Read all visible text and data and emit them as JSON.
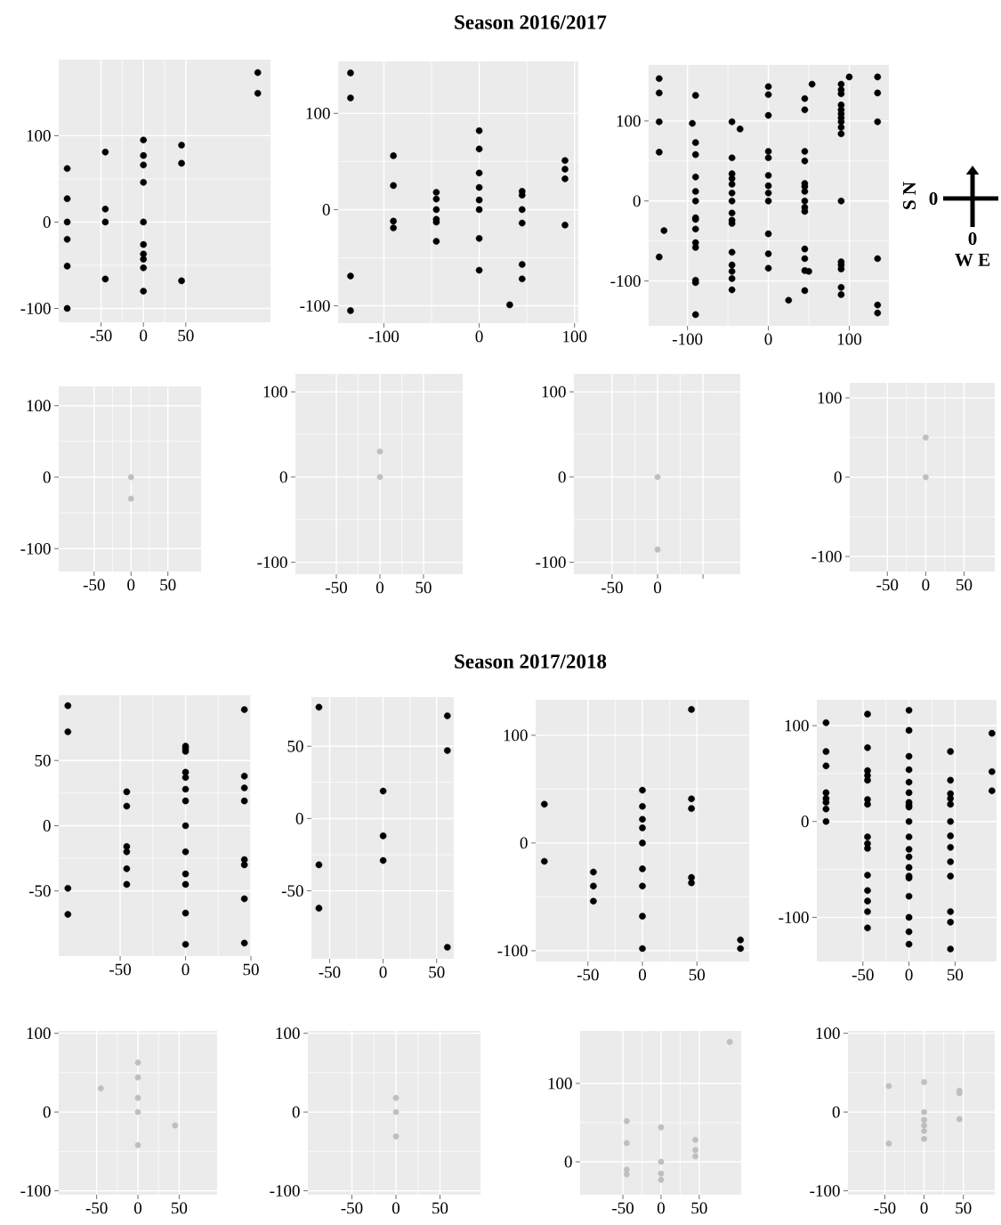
{
  "chart_data": [
    {
      "type": "scatter",
      "color": "#000000",
      "grid": true,
      "xlim": [
        -100,
        150
      ],
      "ylim": [
        -116,
        188
      ],
      "xticks": [
        -50,
        0,
        50
      ],
      "yticks": [
        -100,
        0,
        100
      ],
      "x": [
        -90,
        -90,
        -90,
        -90,
        -90,
        -90,
        -45,
        -45,
        -45,
        -45,
        0,
        0,
        0,
        0,
        0,
        0,
        0,
        0,
        0,
        0,
        45,
        45,
        45,
        135,
        135
      ],
      "values": [
        62,
        27,
        0,
        -20,
        -51,
        -100,
        81,
        15,
        0,
        -66,
        95,
        77,
        66,
        46,
        0,
        -26,
        -37,
        -43,
        -53,
        -80,
        89,
        68,
        -68,
        173,
        149
      ]
    },
    {
      "type": "scatter",
      "title": "Season 2016/2017",
      "color": "#000000",
      "grid": true,
      "xlim": [
        -148,
        104
      ],
      "ylim": [
        -118,
        154
      ],
      "xticks": [
        -100,
        0,
        100
      ],
      "yticks": [
        -100,
        0,
        100
      ],
      "x": [
        -135,
        -135,
        -135,
        -135,
        -90,
        -90,
        -90,
        -90,
        -45,
        -45,
        -45,
        -45,
        -45,
        -45,
        0,
        0,
        0,
        0,
        0,
        0,
        0,
        0,
        45,
        45,
        45,
        45,
        45,
        45,
        32,
        90,
        90,
        90,
        90
      ],
      "values": [
        142,
        116,
        -69,
        -105,
        56,
        25,
        -12,
        -19,
        18,
        11,
        0,
        -10,
        -13,
        -33,
        82,
        63,
        38,
        23,
        10,
        0,
        -30,
        -63,
        19,
        15,
        0,
        -14,
        -57,
        -72,
        -99,
        51,
        42,
        32,
        -16
      ]
    },
    {
      "type": "scatter",
      "color": "#000000",
      "grid": true,
      "xlim": [
        -148,
        149
      ],
      "ylim": [
        -156,
        170
      ],
      "xticks": [
        -100,
        0,
        100
      ],
      "yticks": [
        -100,
        0,
        100
      ],
      "annotations": [
        "S N",
        "0",
        "0",
        "W E"
      ],
      "x": [
        -135,
        -135,
        -135,
        -135,
        -135,
        -129,
        -94,
        -90,
        -90,
        -90,
        -90,
        -90,
        -90,
        -90,
        -90,
        -90,
        -90,
        -90,
        -90,
        -90,
        -90,
        -45,
        -45,
        -45,
        -45,
        -45,
        -45,
        -45,
        -45,
        -45,
        -45,
        -45,
        -45,
        -45,
        -45,
        -45,
        -35,
        0,
        0,
        0,
        0,
        0,
        0,
        0,
        0,
        0,
        0,
        0,
        0,
        25,
        45,
        45,
        45,
        45,
        45,
        45,
        45,
        45,
        45,
        45,
        45,
        45,
        45,
        45,
        50,
        54,
        90,
        90,
        90,
        90,
        90,
        90,
        90,
        90,
        90,
        90,
        90,
        90,
        90,
        90,
        90,
        90,
        100,
        135,
        135,
        135,
        135,
        135,
        135
      ],
      "values": [
        153,
        135,
        99,
        61,
        -70,
        -37,
        97,
        132,
        73,
        58,
        30,
        12,
        0,
        -21,
        -23,
        -35,
        -52,
        -58,
        -99,
        -102,
        -142,
        99,
        54,
        34,
        28,
        21,
        10,
        0,
        -15,
        -24,
        -28,
        -64,
        -80,
        -88,
        -97,
        -111,
        90,
        143,
        133,
        107,
        62,
        54,
        32,
        19,
        10,
        0,
        -41,
        -66,
        -84,
        -124,
        128,
        114,
        62,
        50,
        22,
        18,
        12,
        0,
        -8,
        -13,
        -60,
        -72,
        -87,
        -112,
        -88,
        146,
        146,
        139,
        134,
        120,
        114,
        109,
        104,
        99,
        92,
        84,
        0,
        -76,
        -80,
        -85,
        -108,
        -117,
        155,
        155,
        135,
        99,
        -72,
        -130,
        -140
      ]
    },
    {
      "type": "scatter",
      "color": "#bebebe",
      "grid": true,
      "xlim": [
        -98,
        95
      ],
      "ylim": [
        -132,
        127
      ],
      "xticks": [
        -50,
        0,
        50
      ],
      "yticks": [
        -100,
        0,
        100
      ],
      "x": [
        0,
        0
      ],
      "values": [
        0,
        -30
      ]
    },
    {
      "type": "scatter",
      "color": "#bebebe",
      "grid": true,
      "xlim": [
        -97,
        95
      ],
      "ylim": [
        -114,
        121
      ],
      "xticks": [
        -50,
        0,
        50
      ],
      "yticks": [
        -100,
        0,
        100
      ],
      "x": [
        0,
        0
      ],
      "values": [
        30,
        0
      ]
    },
    {
      "type": "scatter",
      "color": "#bebebe",
      "grid": true,
      "xlim": [
        -92,
        91
      ],
      "ylim": [
        -114,
        121
      ],
      "xticks": [
        -50,
        0,
        {
          "value": 50,
          "label": null
        }
      ],
      "yticks": [
        -100,
        0,
        100
      ],
      "x": [
        0,
        0
      ],
      "values": [
        0,
        -85
      ]
    },
    {
      "type": "scatter",
      "color": "#bebebe",
      "grid": true,
      "xlim": [
        -99,
        90
      ],
      "ylim": [
        -119,
        119
      ],
      "xticks": [
        -50,
        0,
        50
      ],
      "yticks": [
        -100,
        0,
        100
      ],
      "x": [
        0,
        0
      ],
      "values": [
        50,
        0
      ]
    },
    {
      "type": "scatter",
      "color": "#000000",
      "grid": true,
      "xlim": [
        -97,
        50
      ],
      "ylim": [
        -100,
        100
      ],
      "xticks": [
        -50,
        0,
        50
      ],
      "yticks": [
        -50,
        0,
        50
      ],
      "x": [
        -90,
        -90,
        -90,
        -90,
        -45,
        -45,
        -45,
        -45,
        -45,
        -45,
        0,
        0,
        0,
        0,
        0,
        0,
        0,
        0,
        0,
        0,
        0,
        0,
        0,
        45,
        45,
        45,
        45,
        45,
        45,
        45,
        45
      ],
      "values": [
        92,
        72,
        -48,
        -68,
        26,
        15,
        -16,
        -20,
        -33,
        -45,
        61,
        59,
        57,
        41,
        37,
        28,
        19,
        0,
        -20,
        -37,
        -45,
        -67,
        -91,
        89,
        38,
        29,
        19,
        -26,
        -30,
        -56,
        -90
      ]
    },
    {
      "type": "scatter",
      "color": "#000000",
      "grid": true,
      "xlim": [
        -67,
        66
      ],
      "ylim": [
        -97,
        84
      ],
      "xticks": [
        -50,
        0,
        50
      ],
      "yticks": [
        -50,
        0,
        50
      ],
      "x": [
        -60,
        -60,
        -60,
        0,
        0,
        0,
        60,
        60,
        60
      ],
      "values": [
        77,
        -32,
        -62,
        19,
        -12,
        -29,
        71,
        47,
        -89
      ]
    },
    {
      "type": "scatter",
      "title": "Season 2017/2018",
      "color": "#000000",
      "grid": true,
      "xlim": [
        -98,
        98
      ],
      "ylim": [
        -110,
        133
      ],
      "xticks": [
        -50,
        0,
        50
      ],
      "yticks": [
        -100,
        0,
        100
      ],
      "x": [
        -90,
        -90,
        -45,
        -45,
        -45,
        0,
        0,
        0,
        0,
        0,
        0,
        0,
        0,
        0,
        45,
        45,
        45,
        45,
        45,
        90,
        90
      ],
      "values": [
        36,
        -17,
        -27,
        -40,
        -54,
        49,
        34,
        22,
        14,
        0,
        -24,
        -40,
        -68,
        -98,
        124,
        41,
        32,
        -32,
        -37,
        -90,
        -98
      ]
    },
    {
      "type": "scatter",
      "color": "#000000",
      "grid": true,
      "xlim": [
        -100,
        95
      ],
      "ylim": [
        -146,
        127
      ],
      "xticks": [
        -50,
        0,
        50
      ],
      "yticks": [
        -100,
        0,
        100
      ],
      "x": [
        -90,
        -90,
        -90,
        -90,
        -90,
        -90,
        -90,
        -90,
        -45,
        -45,
        -45,
        -45,
        -45,
        -45,
        -45,
        -45,
        -45,
        -45,
        -45,
        -45,
        -45,
        -45,
        -45,
        0,
        0,
        0,
        0,
        0,
        0,
        0,
        0,
        0,
        0,
        0,
        0,
        0,
        0,
        0,
        0,
        0,
        0,
        0,
        0,
        45,
        45,
        45,
        45,
        45,
        45,
        45,
        45,
        45,
        45,
        45,
        45,
        45,
        90,
        90,
        90
      ],
      "values": [
        103,
        73,
        58,
        30,
        24,
        20,
        13,
        0,
        112,
        77,
        53,
        48,
        43,
        23,
        18,
        -16,
        -23,
        -28,
        -56,
        -72,
        -83,
        -94,
        -111,
        116,
        95,
        68,
        54,
        41,
        30,
        20,
        17,
        15,
        0,
        -16,
        -29,
        -37,
        -48,
        -57,
        -59,
        -78,
        -100,
        -115,
        -128,
        73,
        43,
        29,
        24,
        18,
        0,
        -15,
        -27,
        -42,
        -57,
        -94,
        -105,
        -133,
        92,
        52,
        32
      ]
    },
    {
      "type": "scatter",
      "color": "#bebebe",
      "grid": true,
      "xlim": [
        -96,
        96
      ],
      "ylim": [
        -105,
        103
      ],
      "xticks": [
        -50,
        0,
        50
      ],
      "yticks": [
        -100,
        0,
        100
      ],
      "x": [
        -45,
        0,
        0,
        0,
        0,
        0,
        45
      ],
      "values": [
        30,
        63,
        44,
        18,
        0,
        -42,
        -17
      ]
    },
    {
      "type": "scatter",
      "color": "#bebebe",
      "grid": true,
      "xlim": [
        -100,
        96
      ],
      "ylim": [
        -105,
        103
      ],
      "xticks": [
        -50,
        0,
        50
      ],
      "yticks": [
        -100,
        0,
        100
      ],
      "x": [
        0,
        0,
        0
      ],
      "values": [
        18,
        0,
        -31
      ]
    },
    {
      "type": "scatter",
      "color": "#bebebe",
      "grid": true,
      "xlim": [
        -106,
        105
      ],
      "ylim": [
        -42,
        167
      ],
      "xticks": [
        -50,
        0,
        50
      ],
      "yticks": [
        0,
        100
      ],
      "x": [
        -45,
        -45,
        -45,
        -45,
        0,
        0,
        0,
        0,
        45,
        45,
        45,
        90
      ],
      "values": [
        52,
        24,
        -10,
        -16,
        44,
        0,
        -15,
        -23,
        28,
        15,
        7,
        153
      ]
    },
    {
      "type": "scatter",
      "color": "#bebebe",
      "grid": true,
      "xlim": [
        -97,
        90
      ],
      "ylim": [
        -105,
        103
      ],
      "xticks": [
        -50,
        0,
        50
      ],
      "yticks": [
        -100,
        0,
        100
      ],
      "x": [
        -45,
        -45,
        0,
        0,
        0,
        0,
        0,
        0,
        45,
        45,
        45
      ],
      "values": [
        33,
        -40,
        38,
        0,
        -10,
        -17,
        -24,
        -34,
        27,
        24,
        -9
      ]
    }
  ]
}
